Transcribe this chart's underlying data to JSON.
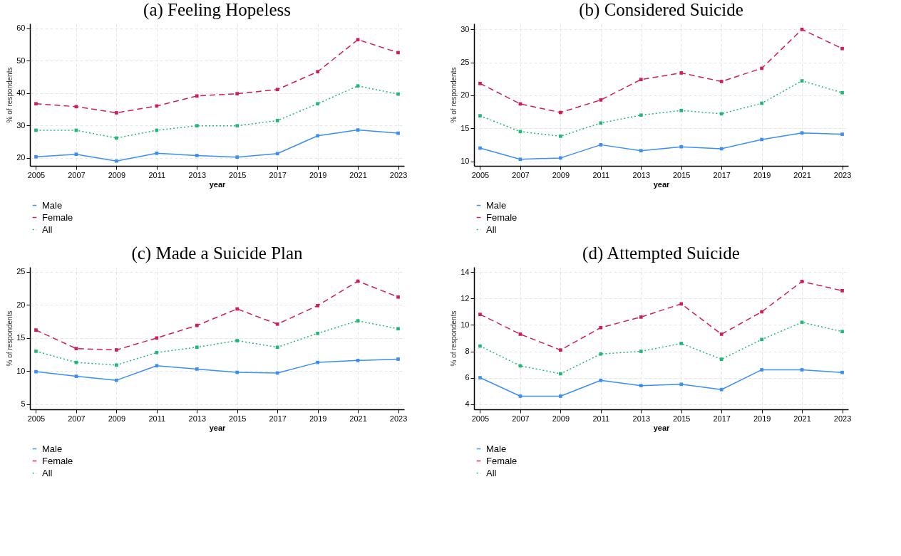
{
  "chart_data": [
    {
      "type": "line",
      "title": "(a)  Feeling Hopeless",
      "xlabel": "year",
      "ylabel": "% of respondents",
      "x": [
        2005,
        2007,
        2009,
        2011,
        2013,
        2015,
        2017,
        2019,
        2021,
        2023
      ],
      "xlim": [
        2004.7,
        2023.3
      ],
      "xticks": [
        2005,
        2007,
        2009,
        2011,
        2013,
        2015,
        2017,
        2019,
        2021,
        2023
      ],
      "ylim": [
        17.5,
        61.5
      ],
      "yticks": [
        20,
        30,
        40,
        50,
        60
      ],
      "grid": true,
      "legend": "bottom",
      "marker": "square",
      "series": [
        {
          "name": "Male",
          "color": "#3a8ef6",
          "line_style": "solid",
          "values": [
            20.3,
            21.1,
            19.0,
            21.4,
            20.7,
            20.2,
            21.3,
            26.8,
            28.6,
            27.6
          ]
        },
        {
          "name": "Female",
          "color": "#d01c5b",
          "line_style": "dashed",
          "values": [
            36.7,
            35.8,
            33.9,
            36.0,
            39.1,
            39.8,
            41.1,
            46.6,
            56.5,
            52.5
          ]
        },
        {
          "name": "All",
          "color": "#1fb77a",
          "line_style": "dotted",
          "values": [
            28.5,
            28.5,
            26.1,
            28.5,
            29.9,
            29.9,
            31.5,
            36.7,
            42.2,
            39.7
          ]
        }
      ]
    },
    {
      "type": "line",
      "title": "(b) Considered Suicide",
      "xlabel": "year",
      "ylabel": "% of respondents",
      "x": [
        2005,
        2007,
        2009,
        2011,
        2013,
        2015,
        2017,
        2019,
        2021,
        2023
      ],
      "xlim": [
        2004.7,
        2023.3
      ],
      "xticks": [
        2005,
        2007,
        2009,
        2011,
        2013,
        2015,
        2017,
        2019,
        2021,
        2023
      ],
      "ylim": [
        9.3,
        30.9
      ],
      "yticks": [
        10,
        15,
        20,
        25,
        30
      ],
      "grid": true,
      "legend": "bottom",
      "marker": "square",
      "series": [
        {
          "name": "Male",
          "color": "#3a8ef6",
          "line_style": "solid",
          "values": [
            12.0,
            10.3,
            10.5,
            12.5,
            11.6,
            12.2,
            11.9,
            13.3,
            14.3,
            14.1
          ]
        },
        {
          "name": "Female",
          "color": "#d01c5b",
          "line_style": "dashed",
          "values": [
            21.8,
            18.7,
            17.4,
            19.3,
            22.4,
            23.4,
            22.1,
            24.1,
            30.0,
            27.1
          ]
        },
        {
          "name": "All",
          "color": "#1fb77a",
          "line_style": "dotted",
          "values": [
            16.9,
            14.5,
            13.8,
            15.8,
            17.0,
            17.7,
            17.2,
            18.8,
            22.2,
            20.4
          ]
        }
      ]
    },
    {
      "type": "line",
      "title": "(c) Made a Suicide Plan",
      "xlabel": "year",
      "ylabel": "% of respondents",
      "x": [
        2005,
        2007,
        2009,
        2011,
        2013,
        2015,
        2017,
        2019,
        2021,
        2023
      ],
      "xlim": [
        2004.7,
        2023.3
      ],
      "xticks": [
        2005,
        2007,
        2009,
        2011,
        2013,
        2015,
        2017,
        2019,
        2021,
        2023
      ],
      "ylim": [
        4.2,
        25.75
      ],
      "yticks": [
        5,
        10,
        15,
        20,
        25
      ],
      "grid": true,
      "legend": "bottom",
      "marker": "square",
      "series": [
        {
          "name": "Male",
          "color": "#3a8ef6",
          "line_style": "solid",
          "values": [
            9.9,
            9.2,
            8.6,
            10.8,
            10.3,
            9.8,
            9.7,
            11.3,
            11.6,
            11.8
          ]
        },
        {
          "name": "Female",
          "color": "#d01c5b",
          "line_style": "dashed",
          "values": [
            16.2,
            13.4,
            13.2,
            15.0,
            16.9,
            19.4,
            17.1,
            19.9,
            23.6,
            21.2
          ]
        },
        {
          "name": "All",
          "color": "#1fb77a",
          "line_style": "dotted",
          "values": [
            13.0,
            11.3,
            10.9,
            12.8,
            13.6,
            14.6,
            13.6,
            15.7,
            17.6,
            16.4
          ]
        }
      ]
    },
    {
      "type": "line",
      "title": "(d) Attempted Suicide",
      "xlabel": "year",
      "ylabel": "% of respondents",
      "x": [
        2005,
        2007,
        2009,
        2011,
        2013,
        2015,
        2017,
        2019,
        2021,
        2023
      ],
      "xlim": [
        2004.7,
        2023.3
      ],
      "xticks": [
        2005,
        2007,
        2009,
        2011,
        2013,
        2015,
        2017,
        2019,
        2021,
        2023
      ],
      "ylim": [
        3.6,
        14.4
      ],
      "yticks": [
        4,
        6,
        8,
        10,
        12,
        14
      ],
      "grid": true,
      "legend": "bottom",
      "marker": "square",
      "series": [
        {
          "name": "Male",
          "color": "#3a8ef6",
          "line_style": "solid",
          "values": [
            6.0,
            4.6,
            4.6,
            5.8,
            5.4,
            5.5,
            5.1,
            6.6,
            6.6,
            6.4
          ]
        },
        {
          "name": "Female",
          "color": "#d01c5b",
          "line_style": "dashed",
          "values": [
            10.8,
            9.3,
            8.1,
            9.8,
            10.6,
            11.6,
            9.3,
            11.0,
            13.3,
            12.6
          ]
        },
        {
          "name": "All",
          "color": "#1fb77a",
          "line_style": "dotted",
          "values": [
            8.4,
            6.9,
            6.3,
            7.8,
            8.0,
            8.6,
            7.4,
            8.9,
            10.2,
            9.5
          ]
        }
      ]
    }
  ]
}
